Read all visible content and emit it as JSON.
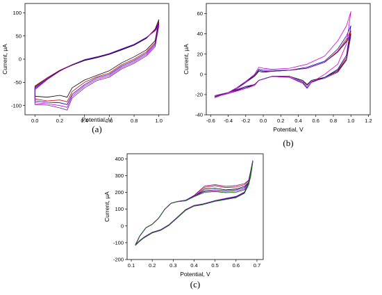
{
  "colors": [
    "#000000",
    "#cc0000",
    "#0000cc",
    "#cc00cc",
    "#6a1b9a",
    "#008000",
    "#ff00ff"
  ],
  "chart_data": [
    {
      "type": "line",
      "panel_label": "(a)",
      "xlabel": "Potential, V",
      "ylabel": "Current, μA",
      "xlim": [
        -0.08,
        1.08
      ],
      "ylim": [
        -120,
        120
      ],
      "xticks": [
        "0.0",
        "0.2",
        "0.4",
        "0.6",
        "0.8",
        "1.0"
      ],
      "yticks": [
        "100",
        "50",
        "0",
        "-50",
        "-100"
      ],
      "grid": false,
      "legend": "none",
      "series": [
        {
          "x": [
            0.0,
            0.1,
            0.2,
            0.3,
            0.4,
            0.5,
            0.6,
            0.7,
            0.8,
            0.9,
            0.97,
            1.0,
            0.97,
            0.9,
            0.8,
            0.7,
            0.6,
            0.5,
            0.4,
            0.3,
            0.26,
            0.2,
            0.1,
            0.0
          ],
          "y": [
            -58,
            -40,
            -25,
            -13,
            -3,
            3,
            10,
            20,
            30,
            45,
            65,
            85,
            40,
            20,
            5,
            -8,
            -25,
            -35,
            -45,
            -62,
            -82,
            -78,
            -82,
            -80
          ]
        },
        {
          "x": [
            0.0,
            0.1,
            0.2,
            0.3,
            0.4,
            0.5,
            0.6,
            0.7,
            0.8,
            0.9,
            0.97,
            1.0,
            0.97,
            0.9,
            0.8,
            0.7,
            0.6,
            0.5,
            0.4,
            0.3,
            0.26,
            0.2,
            0.1,
            0.0
          ],
          "y": [
            -60,
            -40,
            -24,
            -12,
            -2,
            4,
            11,
            21,
            31,
            46,
            64,
            80,
            36,
            16,
            0,
            -12,
            -30,
            -38,
            -50,
            -70,
            -92,
            -88,
            -90,
            -86
          ]
        },
        {
          "x": [
            0.0,
            0.1,
            0.2,
            0.3,
            0.4,
            0.5,
            0.6,
            0.7,
            0.8,
            0.9,
            0.97,
            1.0,
            0.97,
            0.9,
            0.8,
            0.7,
            0.6,
            0.5,
            0.4,
            0.3,
            0.26,
            0.2,
            0.1,
            0.0
          ],
          "y": [
            -62,
            -42,
            -25,
            -12,
            -2,
            4,
            11,
            21,
            31,
            46,
            63,
            77,
            33,
            13,
            -3,
            -15,
            -33,
            -40,
            -55,
            -76,
            -98,
            -94,
            -93,
            -90
          ]
        },
        {
          "x": [
            0.0,
            0.1,
            0.2,
            0.3,
            0.4,
            0.5,
            0.6,
            0.7,
            0.8,
            0.9,
            0.97,
            1.0,
            0.97,
            0.9,
            0.8,
            0.7,
            0.6,
            0.5,
            0.4,
            0.3,
            0.26,
            0.2,
            0.1,
            0.0
          ],
          "y": [
            -64,
            -43,
            -26,
            -12,
            -1,
            5,
            12,
            22,
            32,
            47,
            62,
            74,
            30,
            10,
            -6,
            -18,
            -36,
            -43,
            -58,
            -80,
            -104,
            -100,
            -96,
            -94
          ]
        },
        {
          "x": [
            0.0,
            0.1,
            0.2,
            0.3,
            0.4,
            0.5,
            0.6,
            0.7,
            0.8,
            0.9,
            0.97,
            1.0,
            0.97,
            0.9,
            0.8,
            0.7,
            0.6,
            0.5,
            0.4,
            0.3,
            0.26,
            0.2,
            0.1,
            0.0
          ],
          "y": [
            -66,
            -44,
            -26,
            -12,
            -1,
            5,
            12,
            22,
            32,
            47,
            61,
            71,
            27,
            7,
            -9,
            -21,
            -39,
            -46,
            -62,
            -84,
            -110,
            -105,
            -99,
            -98
          ]
        }
      ]
    },
    {
      "type": "line",
      "panel_label": "(b)",
      "xlabel": "Potential, V",
      "ylabel": "Current, μA",
      "xlim": [
        -0.65,
        1.22
      ],
      "ylim": [
        -40,
        70
      ],
      "xticks": [
        "-0.6",
        "-0.4",
        "-0.2",
        "0.0",
        "0.2",
        "0.4",
        "0.6",
        "0.8",
        "1.0",
        "1.2"
      ],
      "yticks": [
        "60",
        "40",
        "20",
        "0",
        "-20",
        "-40"
      ],
      "grid": false,
      "legend": "none",
      "series": [
        {
          "x": [
            -0.55,
            -0.4,
            -0.3,
            -0.2,
            -0.1,
            -0.05,
            0.0,
            0.1,
            0.3,
            0.5,
            0.7,
            0.85,
            0.95,
            1.0,
            0.95,
            0.85,
            0.7,
            0.55,
            0.5,
            0.45,
            0.3,
            0.1,
            -0.05,
            -0.1,
            -0.2,
            -0.4,
            -0.55
          ],
          "y": [
            -22,
            -18,
            -14,
            -8,
            -2,
            3,
            2,
            3,
            4,
            6,
            12,
            22,
            33,
            40,
            15,
            3,
            -3,
            -6,
            -10,
            -6,
            -2,
            -2,
            -6,
            -10,
            -12,
            -18,
            -21
          ]
        },
        {
          "x": [
            -0.55,
            -0.4,
            -0.3,
            -0.2,
            -0.1,
            -0.05,
            0.0,
            0.1,
            0.3,
            0.5,
            0.7,
            0.85,
            0.95,
            1.0,
            0.95,
            0.85,
            0.7,
            0.55,
            0.5,
            0.45,
            0.3,
            0.1,
            -0.05,
            -0.1,
            -0.2,
            -0.4,
            -0.55
          ],
          "y": [
            -22,
            -18,
            -14,
            -8,
            -1,
            4,
            3,
            3,
            4,
            6,
            12,
            23,
            35,
            43,
            17,
            4,
            -3,
            -7,
            -11,
            -7,
            -2,
            -2,
            -6,
            -10,
            -13,
            -18,
            -22
          ]
        },
        {
          "x": [
            -0.55,
            -0.4,
            -0.3,
            -0.2,
            -0.1,
            -0.05,
            0.0,
            0.1,
            0.3,
            0.5,
            0.7,
            0.85,
            0.95,
            1.0,
            0.95,
            0.85,
            0.7,
            0.55,
            0.5,
            0.45,
            0.3,
            0.1,
            -0.05,
            -0.1,
            -0.2,
            -0.4,
            -0.55
          ],
          "y": [
            -23,
            -18,
            -14,
            -7,
            -1,
            5,
            4,
            4,
            4,
            7,
            13,
            25,
            38,
            48,
            19,
            5,
            -3,
            -8,
            -13,
            -8,
            -3,
            -2,
            -6,
            -11,
            -13,
            -19,
            -22
          ]
        },
        {
          "x": [
            -0.55,
            -0.4,
            -0.3,
            -0.2,
            -0.1,
            -0.05,
            0.0,
            0.1,
            0.3,
            0.5,
            0.7,
            0.85,
            0.95,
            1.0,
            0.95,
            0.85,
            0.7,
            0.55,
            0.5,
            0.45,
            0.3,
            0.1,
            -0.05,
            -0.1,
            -0.2,
            -0.4,
            -0.55
          ],
          "y": [
            -23,
            -18,
            -13,
            -7,
            0,
            7,
            6,
            5,
            6,
            10,
            18,
            33,
            48,
            62,
            30,
            10,
            0,
            -8,
            -14,
            -9,
            -3,
            -2,
            -6,
            -11,
            -14,
            -19,
            -22
          ]
        },
        {
          "x": [
            -0.55,
            -0.4,
            -0.3,
            -0.2,
            -0.1,
            -0.05,
            0.0,
            0.1,
            0.3,
            0.5,
            0.7,
            0.85,
            0.95,
            1.0,
            0.95,
            0.85,
            0.7,
            0.55,
            0.5,
            0.45,
            0.3,
            0.1,
            -0.05,
            -0.1,
            -0.2,
            -0.4,
            -0.55
          ],
          "y": [
            -22,
            -18,
            -14,
            -8,
            -1,
            4,
            3,
            3,
            4,
            6,
            12,
            22,
            32,
            38,
            14,
            2,
            -4,
            -7,
            -11,
            -7,
            -2,
            -2,
            -6,
            -10,
            -12,
            -18,
            -21
          ]
        }
      ]
    },
    {
      "type": "line",
      "panel_label": "(c)",
      "xlabel": "Potential, V",
      "ylabel": "Current, μA",
      "xlim": [
        0.08,
        0.73
      ],
      "ylim": [
        -200,
        430
      ],
      "xticks": [
        "0.1",
        "0.2",
        "0.3",
        "0.4",
        "0.5",
        "0.6",
        "0.7"
      ],
      "yticks": [
        "400",
        "300",
        "200",
        "100",
        "0",
        "-100",
        "-200"
      ],
      "grid": false,
      "legend": "none",
      "series": [
        {
          "x": [
            0.12,
            0.14,
            0.17,
            0.2,
            0.23,
            0.26,
            0.29,
            0.32,
            0.36,
            0.4,
            0.45,
            0.5,
            0.55,
            0.6,
            0.64,
            0.66,
            0.67,
            0.68,
            0.67,
            0.66,
            0.64,
            0.6,
            0.55,
            0.5,
            0.47,
            0.44,
            0.4,
            0.36,
            0.32,
            0.28,
            0.24,
            0.2,
            0.16,
            0.14,
            0.12
          ],
          "y": [
            -110,
            -60,
            -10,
            10,
            45,
            100,
            135,
            145,
            150,
            175,
            220,
            225,
            215,
            220,
            235,
            260,
            320,
            385,
            300,
            250,
            195,
            170,
            160,
            148,
            138,
            128,
            120,
            95,
            50,
            5,
            -25,
            -40,
            -70,
            -90,
            -110
          ]
        },
        {
          "x": [
            0.12,
            0.14,
            0.17,
            0.2,
            0.23,
            0.26,
            0.29,
            0.32,
            0.36,
            0.4,
            0.45,
            0.5,
            0.55,
            0.6,
            0.64,
            0.66,
            0.67,
            0.68,
            0.67,
            0.66,
            0.64,
            0.6,
            0.55,
            0.5,
            0.47,
            0.44,
            0.4,
            0.36,
            0.32,
            0.28,
            0.24,
            0.2,
            0.16,
            0.14,
            0.12
          ],
          "y": [
            -112,
            -60,
            -10,
            10,
            45,
            100,
            135,
            145,
            152,
            180,
            230,
            240,
            228,
            232,
            245,
            268,
            325,
            388,
            305,
            255,
            200,
            175,
            163,
            150,
            140,
            130,
            122,
            97,
            52,
            7,
            -23,
            -38,
            -68,
            -88,
            -112
          ]
        },
        {
          "x": [
            0.12,
            0.14,
            0.17,
            0.2,
            0.23,
            0.26,
            0.29,
            0.32,
            0.36,
            0.4,
            0.45,
            0.5,
            0.55,
            0.6,
            0.64,
            0.66,
            0.67,
            0.68,
            0.67,
            0.66,
            0.64,
            0.6,
            0.55,
            0.5,
            0.47,
            0.44,
            0.4,
            0.36,
            0.32,
            0.28,
            0.24,
            0.2,
            0.16,
            0.14,
            0.12
          ],
          "y": [
            -114,
            -61,
            -11,
            10,
            45,
            100,
            135,
            146,
            153,
            178,
            210,
            215,
            210,
            214,
            228,
            255,
            318,
            382,
            298,
            248,
            198,
            172,
            160,
            149,
            139,
            129,
            121,
            96,
            51,
            6,
            -24,
            -39,
            -69,
            -89,
            -114
          ]
        },
        {
          "x": [
            0.12,
            0.14,
            0.17,
            0.2,
            0.23,
            0.26,
            0.29,
            0.32,
            0.36,
            0.4,
            0.45,
            0.5,
            0.55,
            0.6,
            0.64,
            0.66,
            0.67,
            0.68,
            0.67,
            0.66,
            0.64,
            0.6,
            0.55,
            0.5,
            0.47,
            0.44,
            0.4,
            0.36,
            0.32,
            0.28,
            0.24,
            0.2,
            0.16,
            0.14,
            0.12
          ],
          "y": [
            -116,
            -62,
            -12,
            9,
            44,
            99,
            134,
            145,
            151,
            176,
            205,
            208,
            202,
            206,
            220,
            250,
            315,
            380,
            296,
            246,
            196,
            170,
            158,
            147,
            137,
            127,
            119,
            94,
            49,
            4,
            -26,
            -41,
            -71,
            -91,
            -116
          ]
        },
        {
          "x": [
            0.12,
            0.14,
            0.17,
            0.2,
            0.23,
            0.26,
            0.29,
            0.32,
            0.36,
            0.4,
            0.45,
            0.5,
            0.55,
            0.6,
            0.64,
            0.66,
            0.67,
            0.68,
            0.67,
            0.66,
            0.64,
            0.6,
            0.55,
            0.5,
            0.47,
            0.44,
            0.4,
            0.36,
            0.32,
            0.28,
            0.24,
            0.2,
            0.16,
            0.14,
            0.12
          ],
          "y": [
            -113,
            -60,
            -10,
            11,
            46,
            101,
            136,
            146,
            154,
            182,
            238,
            246,
            236,
            240,
            252,
            272,
            330,
            390,
            308,
            258,
            202,
            176,
            164,
            151,
            141,
            131,
            123,
            98,
            53,
            8,
            -22,
            -37,
            -67,
            -87,
            -113
          ]
        },
        {
          "x": [
            0.12,
            0.14,
            0.17,
            0.2,
            0.23,
            0.26,
            0.29,
            0.32,
            0.36,
            0.4,
            0.45,
            0.5,
            0.55,
            0.6,
            0.64,
            0.66,
            0.67,
            0.68,
            0.67,
            0.66,
            0.64,
            0.6,
            0.55,
            0.5,
            0.47,
            0.44,
            0.4,
            0.36,
            0.32,
            0.28,
            0.24,
            0.2,
            0.16,
            0.14,
            0.12
          ],
          "y": [
            -115,
            -61,
            -11,
            10,
            45,
            100,
            135,
            145,
            150,
            174,
            200,
            205,
            198,
            200,
            215,
            245,
            312,
            378,
            294,
            244,
            194,
            168,
            157,
            146,
            136,
            126,
            118,
            93,
            48,
            3,
            -27,
            -42,
            -72,
            -92,
            -115
          ]
        }
      ]
    }
  ]
}
